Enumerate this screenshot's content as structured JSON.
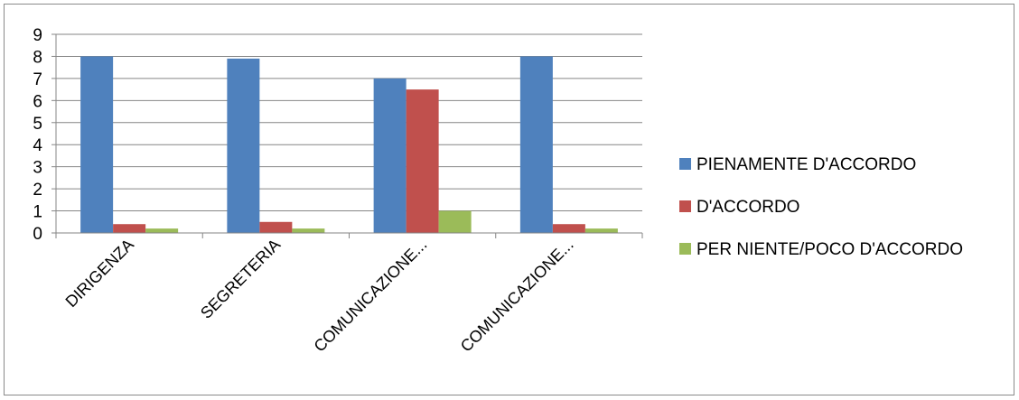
{
  "chart_data": {
    "type": "bar",
    "title": "",
    "xlabel": "",
    "ylabel": "",
    "ylim": [
      0,
      9
    ],
    "yticks": [
      "0",
      "1",
      "2",
      "3",
      "4",
      "5",
      "6",
      "7",
      "8",
      "9"
    ],
    "categories": [
      "DIRIGENZA",
      "SEGRETERIA",
      "COMUNICAZIONE...",
      "COMUNICAZIONE..."
    ],
    "series": [
      {
        "name": "PIENAMENTE D'ACCORDO",
        "color": "#4F81BD",
        "values": [
          8,
          7.9,
          7,
          8
        ]
      },
      {
        "name": "D'ACCORDO",
        "color": "#C0504D",
        "values": [
          0.4,
          0.5,
          6.5,
          0.4
        ]
      },
      {
        "name": "PER NIENTE/POCO D'ACCORDO",
        "color": "#9BBB59",
        "values": [
          0.2,
          0.2,
          1,
          0.2
        ]
      }
    ],
    "grid": true,
    "legend": "right"
  }
}
